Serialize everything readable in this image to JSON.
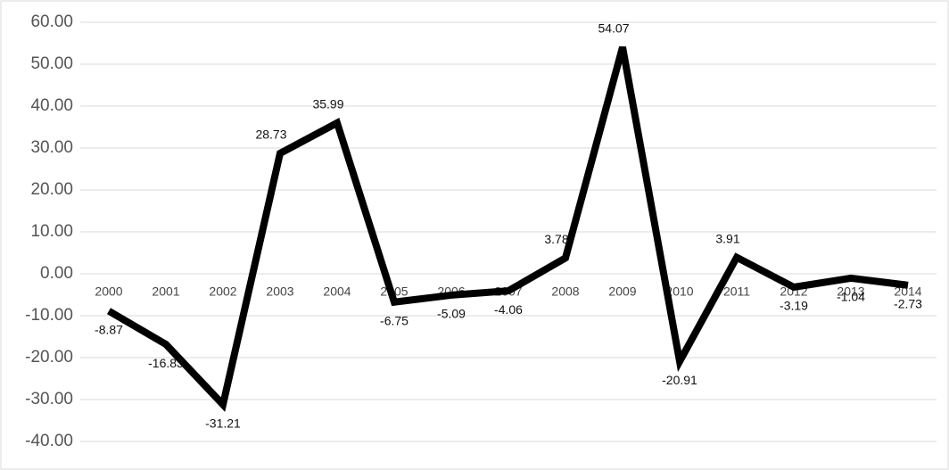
{
  "chart_data": {
    "type": "line",
    "categories": [
      "2000",
      "2001",
      "2002",
      "2003",
      "2004",
      "2005",
      "2006",
      "2007",
      "2008",
      "2009",
      "2010",
      "2011",
      "2012",
      "2013",
      "2014"
    ],
    "values": [
      -8.87,
      -16.83,
      -31.21,
      28.73,
      35.99,
      -6.75,
      -5.09,
      -4.06,
      3.78,
      54.07,
      -20.91,
      3.91,
      -3.19,
      -1.04,
      -2.73
    ],
    "color": "#000000",
    "ylim": [
      -40,
      60
    ],
    "yticks": [
      {
        "value": -40,
        "label": "-40.00"
      },
      {
        "value": -30,
        "label": "-30.00"
      },
      {
        "value": -20,
        "label": "-20.00"
      },
      {
        "value": -10,
        "label": "-10.00"
      },
      {
        "value": 0,
        "label": "0.00"
      },
      {
        "value": 10,
        "label": "10.00"
      },
      {
        "value": 20,
        "label": "20.00"
      },
      {
        "value": 30,
        "label": "30.00"
      },
      {
        "value": 40,
        "label": "40.00"
      },
      {
        "value": 50,
        "label": "50.00"
      },
      {
        "value": 60,
        "label": "60.00"
      }
    ],
    "grid": true
  }
}
